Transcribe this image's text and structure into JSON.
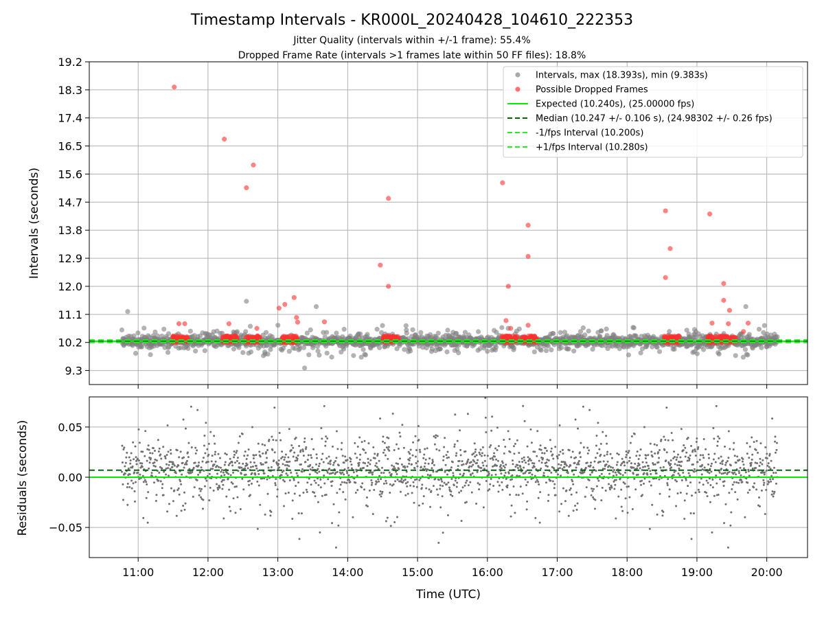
{
  "title": "Timestamp Intervals - KR000L_20240428_104610_222353",
  "subtitle_jitter": "Jitter Quality (intervals within +/-1 frame): 55.4%",
  "subtitle_dropped": "Dropped Frame Rate (intervals >1 frames late within 50 FF files): 18.8%",
  "colors": {
    "intervals": "#808080",
    "dropped": "#ff3030",
    "expected": "#00ee00",
    "median": "#006400",
    "fps_band": "#22ee22",
    "residuals": "#707070",
    "grid": "#b0b0b0"
  },
  "chart_data": [
    {
      "type": "scatter",
      "panel": "top",
      "ylabel": "Intervals (seconds)",
      "ylim": [
        8.85,
        19.2
      ],
      "yticks": [
        "19.2",
        "18.3",
        "17.4",
        "16.5",
        "15.6",
        "14.7",
        "13.8",
        "12.9",
        "12.0",
        "11.1",
        "10.2",
        "9.3"
      ],
      "xlim": [
        "10:18",
        "20:35"
      ],
      "grid": true,
      "legend_placement": "top-right",
      "legend": [
        {
          "label": "Intervals, max (18.393s), min (9.383s)",
          "kind": "dot",
          "color": "#a0a0a0"
        },
        {
          "label": "Possible Dropped Frames",
          "kind": "dot",
          "color": "#ff6060"
        },
        {
          "label": "Expected (10.240s), (25.00000 fps)",
          "kind": "solid",
          "color": "#00ee00"
        },
        {
          "label": "Median (10.247 +/- 0.106 s), (24.98302 +/- 0.26 fps)",
          "kind": "dashed",
          "color": "#006400"
        },
        {
          "label": "-1/fps Interval (10.200s)",
          "kind": "dashed",
          "color": "#22ee22"
        },
        {
          "label": "+1/fps Interval (10.280s)",
          "kind": "dashed",
          "color": "#22ee22"
        }
      ],
      "lines": {
        "expected": 10.24,
        "median": 10.247,
        "minus_fps": 10.2,
        "plus_fps": 10.28
      },
      "intervals_series": {
        "name": "Intervals, max (18.393s), min (9.383s)",
        "time_range": [
          "10:46",
          "20:09"
        ],
        "count": 1950,
        "center": 10.24,
        "band": [
          9.4,
          11.0
        ],
        "outliers": [
          {
            "x": "10:51",
            "y": 11.19
          },
          {
            "x": "12:33",
            "y": 11.52
          },
          {
            "x": "13:33",
            "y": 11.35
          },
          {
            "x": "19:42",
            "y": 11.35
          },
          {
            "x": "13:23",
            "y": 9.38
          }
        ]
      },
      "dropped_series": {
        "name": "Possible Dropped Frames",
        "clusters": [
          {
            "x": "11:36",
            "y": 10.3
          },
          {
            "x": "12:19",
            "y": 10.3
          },
          {
            "x": "12:38",
            "y": 10.3
          },
          {
            "x": "13:10",
            "y": 10.3
          },
          {
            "x": "14:37",
            "y": 10.3
          },
          {
            "x": "16:19",
            "y": 10.3
          },
          {
            "x": "16:36",
            "y": 10.3
          },
          {
            "x": "18:38",
            "y": 10.3
          },
          {
            "x": "19:15",
            "y": 10.3
          },
          {
            "x": "19:27",
            "y": 10.3
          }
        ],
        "points": [
          {
            "x": "11:31",
            "y": 18.39
          },
          {
            "x": "12:14",
            "y": 16.72
          },
          {
            "x": "12:39",
            "y": 15.89
          },
          {
            "x": "12:33",
            "y": 15.16
          },
          {
            "x": "14:35",
            "y": 14.82
          },
          {
            "x": "14:28",
            "y": 12.68
          },
          {
            "x": "14:35",
            "y": 12.0
          },
          {
            "x": "16:13",
            "y": 15.32
          },
          {
            "x": "16:35",
            "y": 13.96
          },
          {
            "x": "16:35",
            "y": 12.96
          },
          {
            "x": "16:18",
            "y": 12.0
          },
          {
            "x": "18:33",
            "y": 14.42
          },
          {
            "x": "18:37",
            "y": 13.21
          },
          {
            "x": "18:33",
            "y": 12.28
          },
          {
            "x": "19:11",
            "y": 14.32
          },
          {
            "x": "19:23",
            "y": 12.09
          },
          {
            "x": "19:23",
            "y": 11.55
          },
          {
            "x": "19:28",
            "y": 11.23
          },
          {
            "x": "13:14",
            "y": 11.64
          },
          {
            "x": "13:06",
            "y": 11.42
          },
          {
            "x": "13:01",
            "y": 11.3
          },
          {
            "x": "13:16",
            "y": 11.0
          },
          {
            "x": "13:17",
            "y": 10.85
          },
          {
            "x": "13:40",
            "y": 10.86
          },
          {
            "x": "11:35",
            "y": 10.8
          },
          {
            "x": "11:40",
            "y": 10.8
          },
          {
            "x": "12:18",
            "y": 10.8
          },
          {
            "x": "16:16",
            "y": 10.9
          },
          {
            "x": "16:20",
            "y": 10.65
          },
          {
            "x": "16:35",
            "y": 10.75
          },
          {
            "x": "19:13",
            "y": 10.82
          },
          {
            "x": "19:27",
            "y": 10.8
          },
          {
            "x": "19:44",
            "y": 10.82
          },
          {
            "x": "12:42",
            "y": 10.65
          },
          {
            "x": "18:40",
            "y": 10.35
          },
          {
            "x": "19:40",
            "y": 10.55
          }
        ]
      }
    },
    {
      "type": "scatter",
      "panel": "bottom",
      "xlabel": "Time (UTC)",
      "ylabel": "Residuals (seconds)",
      "ylim": [
        -0.08,
        0.08
      ],
      "yticks": [
        "0.05",
        "0.00",
        "−0.05"
      ],
      "xticks": [
        "11:00",
        "12:00",
        "13:00",
        "14:00",
        "15:00",
        "16:00",
        "17:00",
        "18:00",
        "19:00",
        "20:00"
      ],
      "grid": true,
      "lines": {
        "expected": 0.0,
        "median": 0.007
      },
      "residuals_series": {
        "time_range": [
          "10:46",
          "20:09"
        ],
        "count": 1950,
        "center": 0.008,
        "range": [
          -0.08,
          0.08
        ]
      }
    }
  ]
}
